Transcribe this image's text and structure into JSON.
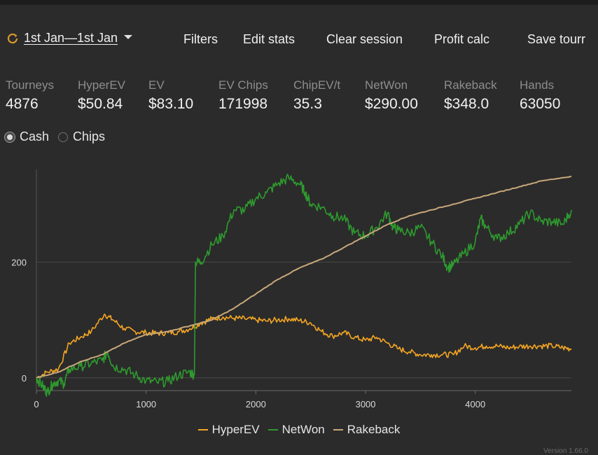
{
  "toolbar": {
    "date_range": "1st Jan—1st Jan",
    "filters": "Filters",
    "edit_stats": "Edit stats",
    "clear_session": "Clear session",
    "profit_calc": "Profit calc",
    "save_tourney": "Save tourr"
  },
  "stats": [
    {
      "label": "Tourneys",
      "value": "4876"
    },
    {
      "label": "HyperEV",
      "value": "$50.84"
    },
    {
      "label": "EV",
      "value": "$83.10"
    },
    {
      "label": "EV Chips",
      "value": "171998"
    },
    {
      "label": "ChipEV/t",
      "value": "35.3"
    },
    {
      "label": "NetWon",
      "value": "$290.00"
    },
    {
      "label": "Rakeback",
      "value": "$348.0"
    },
    {
      "label": "Hands",
      "value": "63050"
    }
  ],
  "mode": {
    "cash": "Cash",
    "chips": "Chips",
    "selected": "cash"
  },
  "version": "Version 1.66.0",
  "colors": {
    "hyperev": "#f5a623",
    "netwon": "#2e9a2e",
    "rakeback": "#c8a87a",
    "background": "#2b2b2b"
  },
  "chart_data": {
    "type": "line",
    "xlim": [
      0,
      4876
    ],
    "ylim": [
      -22,
      360
    ],
    "x_ticks": [
      0,
      1000,
      2000,
      3000,
      4000
    ],
    "y_ticks": [
      0,
      200
    ],
    "legend_position": "bottom",
    "series": [
      {
        "name": "HyperEV",
        "points": [
          [
            0,
            0
          ],
          [
            100,
            10
          ],
          [
            200,
            15
          ],
          [
            300,
            60
          ],
          [
            400,
            70
          ],
          [
            500,
            80
          ],
          [
            620,
            110
          ],
          [
            700,
            100
          ],
          [
            800,
            85
          ],
          [
            900,
            80
          ],
          [
            1000,
            78
          ],
          [
            1100,
            77
          ],
          [
            1200,
            78
          ],
          [
            1300,
            80
          ],
          [
            1400,
            85
          ],
          [
            1500,
            95
          ],
          [
            1600,
            102
          ],
          [
            1700,
            105
          ],
          [
            1800,
            103
          ],
          [
            1900,
            102
          ],
          [
            2000,
            100
          ],
          [
            2100,
            98
          ],
          [
            2200,
            100
          ],
          [
            2300,
            102
          ],
          [
            2400,
            99
          ],
          [
            2500,
            95
          ],
          [
            2600,
            80
          ],
          [
            2700,
            72
          ],
          [
            2800,
            78
          ],
          [
            2900,
            70
          ],
          [
            3000,
            65
          ],
          [
            3100,
            70
          ],
          [
            3200,
            60
          ],
          [
            3300,
            50
          ],
          [
            3400,
            45
          ],
          [
            3500,
            40
          ],
          [
            3600,
            40
          ],
          [
            3700,
            40
          ],
          [
            3800,
            40
          ],
          [
            3900,
            55
          ],
          [
            4000,
            52
          ],
          [
            4100,
            55
          ],
          [
            4200,
            55
          ],
          [
            4300,
            52
          ],
          [
            4400,
            54
          ],
          [
            4500,
            55
          ],
          [
            4600,
            55
          ],
          [
            4700,
            55
          ],
          [
            4800,
            52
          ],
          [
            4876,
            50
          ]
        ]
      },
      {
        "name": "NetWon",
        "points": [
          [
            0,
            0
          ],
          [
            60,
            -15
          ],
          [
            100,
            -25
          ],
          [
            150,
            -10
          ],
          [
            200,
            -5
          ],
          [
            250,
            -10
          ],
          [
            300,
            15
          ],
          [
            400,
            20
          ],
          [
            500,
            25
          ],
          [
            600,
            30
          ],
          [
            650,
            45
          ],
          [
            700,
            20
          ],
          [
            800,
            15
          ],
          [
            900,
            5
          ],
          [
            1000,
            -5
          ],
          [
            1100,
            -8
          ],
          [
            1200,
            -6
          ],
          [
            1300,
            5
          ],
          [
            1400,
            10
          ],
          [
            1440,
            5
          ],
          [
            1450,
            200
          ],
          [
            1500,
            200
          ],
          [
            1600,
            230
          ],
          [
            1700,
            245
          ],
          [
            1800,
            290
          ],
          [
            1900,
            290
          ],
          [
            2000,
            310
          ],
          [
            2100,
            320
          ],
          [
            2200,
            335
          ],
          [
            2300,
            345
          ],
          [
            2400,
            335
          ],
          [
            2450,
            320
          ],
          [
            2500,
            300
          ],
          [
            2600,
            295
          ],
          [
            2700,
            280
          ],
          [
            2800,
            275
          ],
          [
            2900,
            250
          ],
          [
            3000,
            245
          ],
          [
            3100,
            260
          ],
          [
            3200,
            285
          ],
          [
            3250,
            260
          ],
          [
            3300,
            255
          ],
          [
            3400,
            250
          ],
          [
            3500,
            260
          ],
          [
            3600,
            235
          ],
          [
            3700,
            210
          ],
          [
            3750,
            190
          ],
          [
            3800,
            195
          ],
          [
            3900,
            215
          ],
          [
            4000,
            235
          ],
          [
            4050,
            275
          ],
          [
            4100,
            260
          ],
          [
            4200,
            240
          ],
          [
            4300,
            250
          ],
          [
            4400,
            265
          ],
          [
            4500,
            285
          ],
          [
            4600,
            270
          ],
          [
            4700,
            270
          ],
          [
            4800,
            265
          ],
          [
            4876,
            290
          ]
        ]
      },
      {
        "name": "Rakeback",
        "points": [
          [
            0,
            0
          ],
          [
            200,
            10
          ],
          [
            400,
            28
          ],
          [
            600,
            40
          ],
          [
            800,
            60
          ],
          [
            1000,
            75
          ],
          [
            1200,
            80
          ],
          [
            1400,
            90
          ],
          [
            1600,
            100
          ],
          [
            1800,
            120
          ],
          [
            2000,
            145
          ],
          [
            2200,
            170
          ],
          [
            2400,
            190
          ],
          [
            2600,
            205
          ],
          [
            2800,
            225
          ],
          [
            3000,
            245
          ],
          [
            3200,
            265
          ],
          [
            3400,
            280
          ],
          [
            3600,
            290
          ],
          [
            3800,
            300
          ],
          [
            4000,
            310
          ],
          [
            4200,
            320
          ],
          [
            4400,
            330
          ],
          [
            4600,
            340
          ],
          [
            4876,
            348
          ]
        ]
      }
    ]
  }
}
